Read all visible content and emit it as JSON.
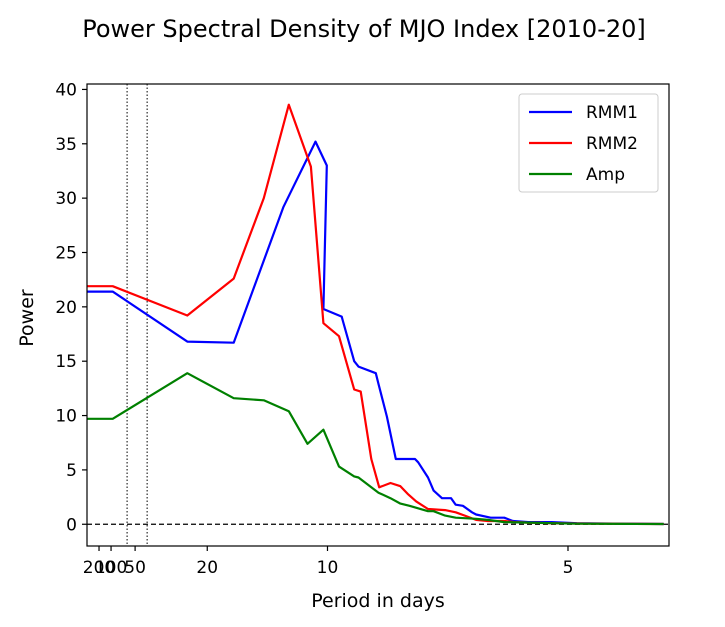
{
  "chart_data": {
    "type": "line",
    "title": "Power Spectral Density of MJO Index [2010-20]",
    "xlabel": "Period in days",
    "ylabel": "Power",
    "x_axis_variable": "frequency in cycles per day (axis ticks labeled as period in days)",
    "xlim": [
      0.0,
      0.242
    ],
    "ylim": [
      -2,
      40.5
    ],
    "xticks": [
      {
        "period": 200,
        "label": "200"
      },
      {
        "period": 100,
        "label": "100"
      },
      {
        "period": 50,
        "label": "50"
      },
      {
        "period": 20,
        "label": "20"
      },
      {
        "period": 10,
        "label": "10"
      },
      {
        "period": 5,
        "label": "5"
      }
    ],
    "yticks": [
      0,
      5,
      10,
      15,
      20,
      25,
      30,
      35,
      40
    ],
    "reference_lines": {
      "horizontal_dashed_y": 0,
      "vertical_dotted_periods": [
        60,
        40
      ]
    },
    "legend_position": "top-right",
    "series": [
      {
        "name": "RMM1",
        "color": "#0000ff",
        "x": [
          0.0,
          0.0107,
          0.0417,
          0.061,
          0.0817,
          0.095,
          0.0997,
          0.0983,
          0.1059,
          0.1064,
          0.1111,
          0.1129,
          0.1201,
          0.1212,
          0.1247,
          0.1284,
          0.1364,
          0.1377,
          0.1418,
          0.1441,
          0.1476,
          0.1514,
          0.1533,
          0.1563,
          0.1601,
          0.1618,
          0.1678,
          0.1735,
          0.1771,
          0.1835,
          0.1932,
          0.2037,
          0.2238,
          0.2398
        ],
        "y": [
          21.4,
          21.4,
          16.8,
          16.7,
          29.2,
          35.2,
          33.0,
          19.8,
          19.1,
          18.7,
          15.0,
          14.5,
          13.9,
          12.9,
          9.9,
          6.0,
          6.0,
          5.7,
          4.3,
          3.1,
          2.4,
          2.4,
          1.8,
          1.7,
          1.1,
          0.9,
          0.6,
          0.6,
          0.3,
          0.2,
          0.2,
          0.1,
          0.05,
          0.02
        ]
      },
      {
        "name": "RMM2",
        "color": "#ff0000",
        "x": [
          0.0,
          0.0107,
          0.0417,
          0.061,
          0.0735,
          0.0839,
          0.0931,
          0.0983,
          0.1048,
          0.1111,
          0.1138,
          0.1182,
          0.1215,
          0.1262,
          0.1303,
          0.1333,
          0.1369,
          0.1418,
          0.1489,
          0.1533,
          0.1571,
          0.1618,
          0.1667,
          0.1735,
          0.1778,
          0.1835,
          0.1932,
          0.2037,
          0.2238,
          0.2398
        ],
        "y": [
          21.9,
          21.9,
          19.2,
          22.6,
          30.0,
          38.6,
          32.9,
          18.5,
          17.3,
          12.4,
          12.2,
          6.0,
          3.4,
          3.8,
          3.5,
          2.8,
          2.1,
          1.4,
          1.3,
          1.1,
          0.8,
          0.4,
          0.3,
          0.3,
          0.2,
          0.15,
          0.1,
          0.07,
          0.04,
          0.02
        ]
      },
      {
        "name": "Amp",
        "color": "#008000",
        "x": [
          0.0,
          0.0107,
          0.0417,
          0.061,
          0.0735,
          0.0839,
          0.0917,
          0.0983,
          0.1048,
          0.1111,
          0.1129,
          0.1212,
          0.1262,
          0.1303,
          0.1341,
          0.1418,
          0.1441,
          0.1489,
          0.1533,
          0.1618,
          0.1667,
          0.1735,
          0.1835,
          0.1932,
          0.2037,
          0.2238,
          0.2398
        ],
        "y": [
          9.7,
          9.7,
          13.9,
          11.6,
          11.4,
          10.4,
          7.4,
          8.7,
          5.3,
          4.4,
          4.3,
          2.9,
          2.4,
          1.9,
          1.7,
          1.2,
          1.2,
          0.8,
          0.6,
          0.5,
          0.4,
          0.2,
          0.15,
          0.1,
          0.05,
          0.03,
          0.02
        ]
      }
    ]
  }
}
